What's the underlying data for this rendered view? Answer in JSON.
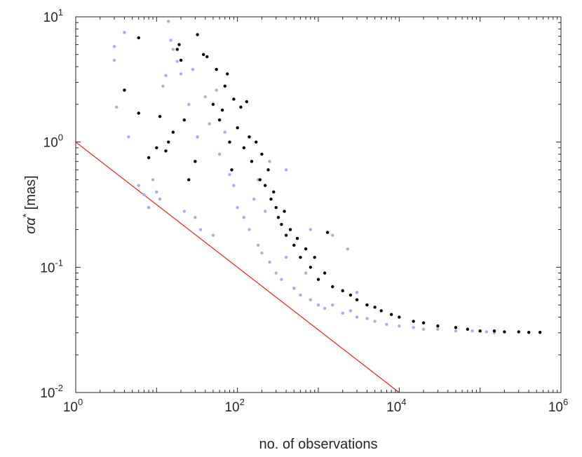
{
  "chart_data": {
    "type": "scatter",
    "title": "",
    "xlabel": "no. of observations",
    "ylabel_symbol": "σα",
    "ylabel_sup": "*",
    "ylabel_unit": " [mas]",
    "x_scale": "log",
    "y_scale": "log",
    "xlim": [
      1,
      1000000
    ],
    "ylim": [
      0.01,
      10
    ],
    "grid": false,
    "x_ticks": [
      {
        "base": "10",
        "exp": "0",
        "value": 1
      },
      {
        "base": "10",
        "exp": "2",
        "value": 100
      },
      {
        "base": "10",
        "exp": "4",
        "value": 10000
      },
      {
        "base": "10",
        "exp": "6",
        "value": 1000000
      }
    ],
    "y_ticks": [
      {
        "base": "10",
        "exp": "-2",
        "value": 0.01
      },
      {
        "base": "10",
        "exp": "-1",
        "value": 0.1
      },
      {
        "base": "10",
        "exp": "0",
        "value": 1
      },
      {
        "base": "10",
        "exp": "1",
        "value": 10
      }
    ],
    "colors": {
      "series_light": "#aaaaee",
      "series_dark": "#000000",
      "reference_line": "#e8201c",
      "axes": "#262626"
    },
    "reference_line": {
      "points": [
        [
          1,
          1
        ],
        [
          10000,
          0.01
        ]
      ]
    },
    "series": [
      {
        "color": "#aaaaee",
        "points": [
          [
            3,
            5.8
          ],
          [
            3,
            4.5
          ],
          [
            3.2,
            1.9
          ],
          [
            4,
            7.5
          ],
          [
            4,
            2.6
          ],
          [
            4.5,
            1.1
          ],
          [
            6,
            0.45
          ],
          [
            7,
            0.38
          ],
          [
            8,
            0.3
          ],
          [
            9,
            0.5
          ],
          [
            10,
            0.4
          ],
          [
            11,
            0.35
          ],
          [
            12,
            2.8
          ],
          [
            13,
            3.4
          ],
          [
            14,
            9.2
          ],
          [
            15,
            6.5
          ],
          [
            16,
            5.5
          ],
          [
            18,
            4.4
          ],
          [
            20,
            3.5
          ],
          [
            22,
            0.28
          ],
          [
            25,
            2.0
          ],
          [
            28,
            3.8
          ],
          [
            30,
            0.25
          ],
          [
            32,
            1.1
          ],
          [
            35,
            0.2
          ],
          [
            40,
            2.3
          ],
          [
            45,
            1.4
          ],
          [
            50,
            0.18
          ],
          [
            55,
            2.6
          ],
          [
            60,
            0.8
          ],
          [
            70,
            1.2
          ],
          [
            80,
            0.55
          ],
          [
            90,
            0.45
          ],
          [
            100,
            0.3
          ],
          [
            120,
            0.25
          ],
          [
            140,
            0.2
          ],
          [
            160,
            0.35
          ],
          [
            180,
            0.15
          ],
          [
            200,
            0.13
          ],
          [
            220,
            0.28
          ],
          [
            250,
            0.11
          ],
          [
            300,
            0.09
          ],
          [
            350,
            0.08
          ],
          [
            400,
            0.12
          ],
          [
            500,
            0.068
          ],
          [
            600,
            0.06
          ],
          [
            700,
            0.09
          ],
          [
            800,
            0.055
          ],
          [
            1000,
            0.05
          ],
          [
            1200,
            0.047
          ],
          [
            1500,
            0.05
          ],
          [
            2000,
            0.043
          ],
          [
            2500,
            0.045
          ],
          [
            3000,
            0.04
          ],
          [
            4000,
            0.039
          ],
          [
            5000,
            0.037
          ],
          [
            7000,
            0.035
          ],
          [
            10000,
            0.034
          ],
          [
            15000,
            0.033
          ],
          [
            20000,
            0.032
          ],
          [
            30000,
            0.032
          ],
          [
            50000,
            0.031
          ],
          [
            80000,
            0.031
          ],
          [
            120000,
            0.0305
          ],
          [
            150000,
            0.03
          ],
          [
            3000,
            0.063
          ],
          [
            2300,
            0.14
          ],
          [
            1500,
            0.18
          ],
          [
            800,
            0.2
          ],
          [
            400,
            0.6
          ],
          [
            250,
            0.7
          ],
          [
            180,
            0.5
          ]
        ]
      },
      {
        "color": "#000000",
        "points": [
          [
            4,
            2.6
          ],
          [
            6,
            6.8
          ],
          [
            6,
            1.7
          ],
          [
            8,
            0.75
          ],
          [
            10,
            0.9
          ],
          [
            11,
            1.6
          ],
          [
            13,
            0.85
          ],
          [
            14,
            1.0
          ],
          [
            16,
            1.2
          ],
          [
            18,
            5.5
          ],
          [
            19,
            6.0
          ],
          [
            20,
            4.5
          ],
          [
            22,
            1.5
          ],
          [
            25,
            0.5
          ],
          [
            30,
            0.7
          ],
          [
            32,
            7.2
          ],
          [
            38,
            5.0
          ],
          [
            42,
            4.8
          ],
          [
            50,
            2.0
          ],
          [
            55,
            3.8
          ],
          [
            60,
            1.5
          ],
          [
            65,
            1.8
          ],
          [
            70,
            2.8
          ],
          [
            75,
            3.5
          ],
          [
            80,
            1.0
          ],
          [
            85,
            0.6
          ],
          [
            90,
            2.2
          ],
          [
            100,
            1.3
          ],
          [
            110,
            1.9
          ],
          [
            120,
            0.9
          ],
          [
            130,
            2.1
          ],
          [
            140,
            1.1
          ],
          [
            150,
            0.7
          ],
          [
            170,
            1.0
          ],
          [
            190,
            0.5
          ],
          [
            200,
            0.8
          ],
          [
            220,
            0.45
          ],
          [
            240,
            0.6
          ],
          [
            260,
            0.35
          ],
          [
            280,
            0.4
          ],
          [
            300,
            0.3
          ],
          [
            320,
            0.25
          ],
          [
            350,
            0.22
          ],
          [
            380,
            0.28
          ],
          [
            400,
            0.18
          ],
          [
            450,
            0.2
          ],
          [
            500,
            0.15
          ],
          [
            550,
            0.17
          ],
          [
            600,
            0.12
          ],
          [
            700,
            0.14
          ],
          [
            800,
            0.1
          ],
          [
            900,
            0.12
          ],
          [
            1000,
            0.08
          ],
          [
            1200,
            0.09
          ],
          [
            1300,
            0.19
          ],
          [
            1500,
            0.07
          ],
          [
            2000,
            0.065
          ],
          [
            2500,
            0.06
          ],
          [
            3000,
            0.055
          ],
          [
            4000,
            0.05
          ],
          [
            5000,
            0.048
          ],
          [
            6000,
            0.045
          ],
          [
            8000,
            0.042
          ],
          [
            10000,
            0.04
          ],
          [
            15000,
            0.037
          ],
          [
            20000,
            0.036
          ],
          [
            30000,
            0.034
          ],
          [
            50000,
            0.033
          ],
          [
            70000,
            0.032
          ],
          [
            100000,
            0.031
          ],
          [
            150000,
            0.031
          ],
          [
            200000,
            0.0305
          ],
          [
            300000,
            0.0305
          ],
          [
            400000,
            0.0302
          ],
          [
            550000,
            0.0302
          ]
        ]
      }
    ]
  }
}
